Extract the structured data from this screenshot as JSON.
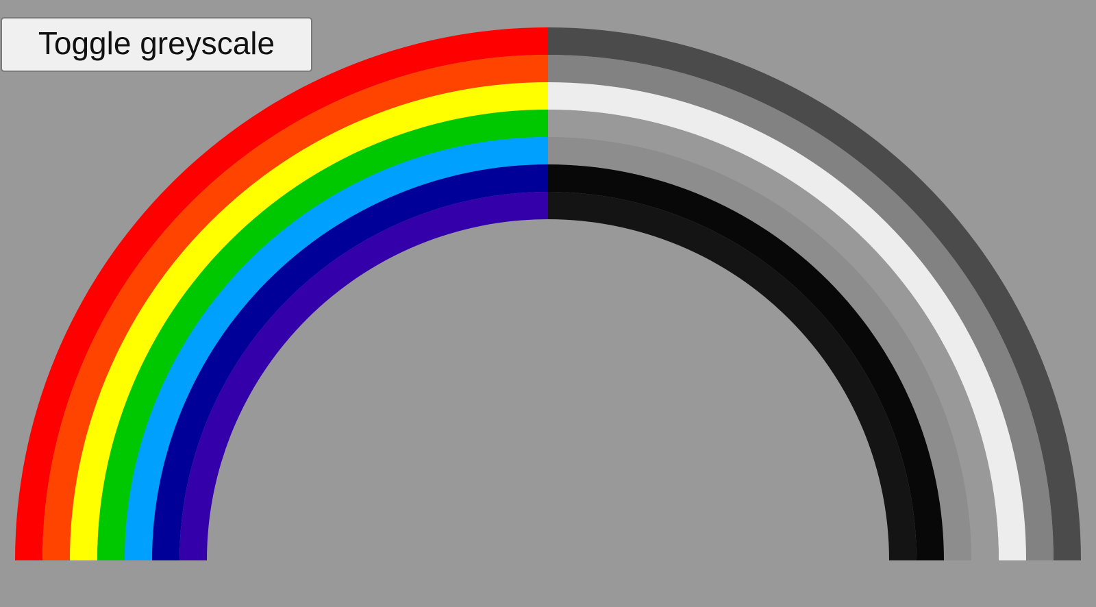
{
  "toggle_button": {
    "label": "Toggle greyscale"
  },
  "rainbow": {
    "left_half_colors": [
      "#ff0000",
      "#ff4400",
      "#ffff00",
      "#00c800",
      "#00a0ff",
      "#000099",
      "#3300aa"
    ],
    "right_half_colors": [
      "#4b4b4b",
      "#828282",
      "#ededed",
      "#999999",
      "#8d8d8d",
      "#080808",
      "#141414"
    ]
  }
}
